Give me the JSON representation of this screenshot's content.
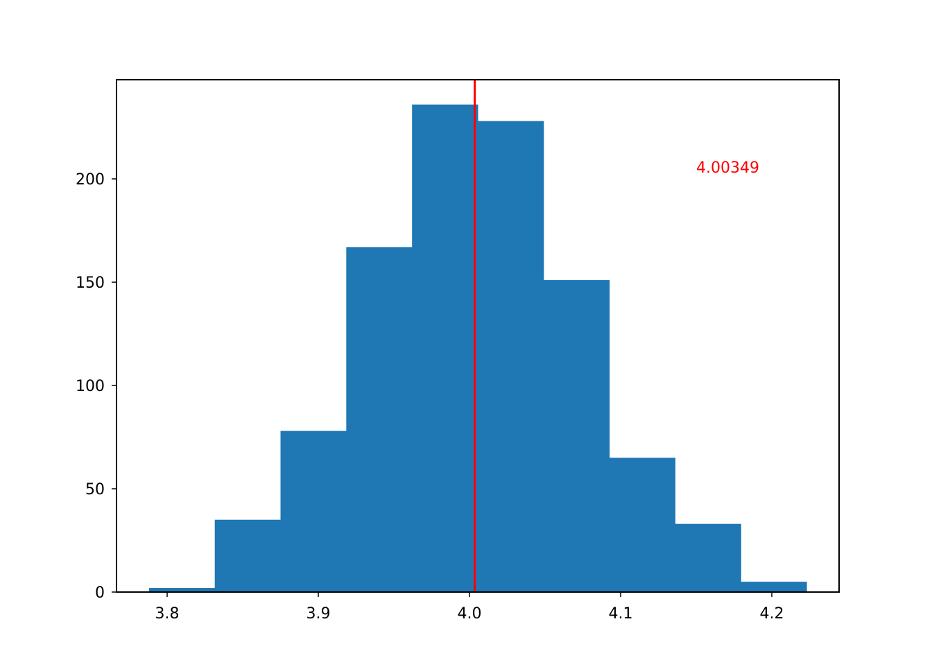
{
  "chart_data": {
    "type": "bar",
    "subtype": "histogram",
    "title": "",
    "xlabel": "",
    "ylabel": "",
    "bins": [
      {
        "x0": 3.788,
        "x1": 3.8315,
        "count": 2
      },
      {
        "x0": 3.8315,
        "x1": 3.875,
        "count": 35
      },
      {
        "x0": 3.875,
        "x1": 3.9185,
        "count": 78
      },
      {
        "x0": 3.9185,
        "x1": 3.962,
        "count": 167
      },
      {
        "x0": 3.962,
        "x1": 4.0055,
        "count": 236
      },
      {
        "x0": 4.0055,
        "x1": 4.049,
        "count": 228
      },
      {
        "x0": 4.049,
        "x1": 4.0925,
        "count": 151
      },
      {
        "x0": 4.0925,
        "x1": 4.136,
        "count": 65
      },
      {
        "x0": 4.136,
        "x1": 4.1795,
        "count": 33
      },
      {
        "x0": 4.1795,
        "x1": 4.223,
        "count": 5
      }
    ],
    "xlim": [
      3.7665,
      4.2445
    ],
    "ylim": [
      0,
      248
    ],
    "xticks": [
      3.8,
      3.9,
      4.0,
      4.1,
      4.2
    ],
    "xtick_labels": [
      "3.8",
      "3.9",
      "4.0",
      "4.1",
      "4.2"
    ],
    "yticks": [
      0,
      50,
      100,
      150,
      200
    ],
    "ytick_labels": [
      "0",
      "50",
      "100",
      "150",
      "200"
    ],
    "vline": {
      "x": 4.00349,
      "color": "#ff0000"
    },
    "annotation": {
      "text": "4.00349",
      "x": 4.15,
      "y": 203,
      "color": "#ff0000"
    },
    "bar_color": "#1f77b4",
    "grid": false,
    "legend": false
  }
}
